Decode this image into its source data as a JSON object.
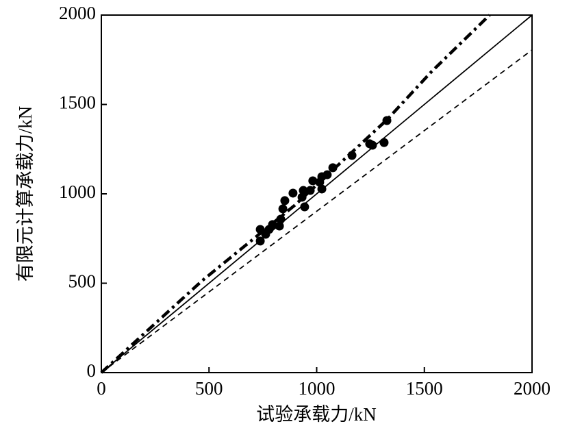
{
  "chart_data": {
    "type": "scatter",
    "x_label": "试验承载力/kN",
    "y_label": "有限元计算承载力/kN",
    "xlim": [
      0,
      2000
    ],
    "ylim": [
      0,
      2000
    ],
    "xticks": [
      0,
      500,
      1000,
      1500,
      2000
    ],
    "yticks": [
      0,
      500,
      1000,
      1500,
      2000
    ],
    "series": [
      {
        "type": "scatter",
        "color": "#000000",
        "x": [
          738,
          738,
          763,
          779,
          795,
          827,
          833,
          843,
          852,
          890,
          932,
          938,
          944,
          970,
          982,
          1014,
          1024,
          1024,
          1049,
          1075,
          1164,
          1246,
          1259,
          1313,
          1326
        ],
        "values": [
          736,
          801,
          774,
          801,
          828,
          820,
          858,
          916,
          962,
          1004,
          981,
          1019,
          927,
          1019,
          1073,
          1065,
          1096,
          1027,
          1107,
          1146,
          1215,
          1280,
          1272,
          1287,
          1410
        ]
      },
      {
        "type": "line",
        "style": "solid",
        "color": "#000000",
        "x": [
          0,
          2000
        ],
        "values": [
          0,
          2000
        ]
      },
      {
        "type": "line",
        "style": "dashed",
        "color": "#000000",
        "x": [
          0,
          2000
        ],
        "values": [
          0,
          1805
        ]
      },
      {
        "type": "line",
        "style": "dashdot",
        "color": "#000000",
        "x": [
          0,
          467,
          897,
          1326,
          1532,
          1803
        ],
        "values": [
          0,
          513,
          935,
          1414,
          1682,
          2000
        ]
      }
    ]
  }
}
